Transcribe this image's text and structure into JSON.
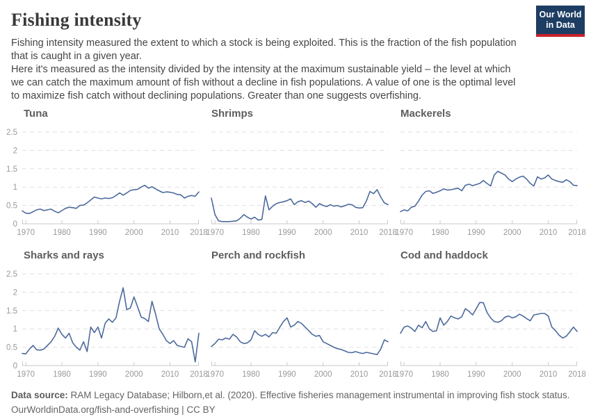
{
  "header": {
    "title": "Fishing intensity",
    "description_1": "Fishing intensity measured the extent to which a stock is being exploited. This is the fraction of the fish population that is caught in a given year.",
    "description_2": "Here it's measured as the intensity divided by the intensity at the maximum sustainable yield – the level at which we can catch the maximum amount of fish without a decline in fish populations. A value of one is the optimal level to maximize fish catch without declining populations. Greater than one suggests overfishing."
  },
  "logo": {
    "line1": "Our World",
    "line2": "in Data",
    "bg_color": "#1d3d63",
    "accent_color": "#c8222b"
  },
  "colors": {
    "line": "#4c6a9c",
    "grid": "#e0e0e0",
    "axis": "#c9c9c9",
    "tick_text": "#999999",
    "chart_title": "#5d5d5d"
  },
  "chart_data": {
    "type": "line",
    "layout": "small-multiples 2 rows x 3 columns",
    "x": {
      "start_year": 1969,
      "end_year": 2018,
      "step": 1
    },
    "x_tick_labels": [
      1970,
      1980,
      1990,
      2000,
      2010,
      2018
    ],
    "y_ticks": [
      0,
      0.5,
      1,
      1.5,
      2,
      2.5
    ],
    "ylim": [
      0,
      2.5
    ],
    "grid": "dashed horizontal gridlines, y labels shown on left column only",
    "series": [
      {
        "name": "Tuna",
        "y_axis_labels_shown": true,
        "values": [
          0.35,
          0.29,
          0.28,
          0.33,
          0.38,
          0.4,
          0.36,
          0.38,
          0.4,
          0.34,
          0.3,
          0.36,
          0.42,
          0.45,
          0.44,
          0.42,
          0.5,
          0.51,
          0.57,
          0.65,
          0.73,
          0.7,
          0.68,
          0.7,
          0.69,
          0.71,
          0.77,
          0.84,
          0.78,
          0.84,
          0.91,
          0.93,
          0.94,
          1.0,
          1.05,
          0.97,
          1.01,
          0.95,
          0.9,
          0.85,
          0.87,
          0.86,
          0.84,
          0.8,
          0.79,
          0.7,
          0.75,
          0.77,
          0.75,
          0.87
        ]
      },
      {
        "name": "Shrimps",
        "y_axis_labels_shown": false,
        "values": [
          0.7,
          0.25,
          0.08,
          0.06,
          0.06,
          0.06,
          0.07,
          0.08,
          0.15,
          0.25,
          0.18,
          0.13,
          0.18,
          0.1,
          0.12,
          0.76,
          0.38,
          0.48,
          0.55,
          0.58,
          0.6,
          0.63,
          0.68,
          0.52,
          0.6,
          0.63,
          0.58,
          0.62,
          0.55,
          0.45,
          0.55,
          0.5,
          0.47,
          0.52,
          0.48,
          0.5,
          0.46,
          0.49,
          0.53,
          0.52,
          0.45,
          0.43,
          0.44,
          0.62,
          0.88,
          0.82,
          0.93,
          0.73,
          0.57,
          0.52
        ]
      },
      {
        "name": "Mackerels",
        "y_axis_labels_shown": false,
        "values": [
          0.33,
          0.38,
          0.35,
          0.45,
          0.48,
          0.62,
          0.78,
          0.88,
          0.9,
          0.83,
          0.86,
          0.9,
          0.95,
          0.92,
          0.93,
          0.95,
          0.97,
          0.9,
          1.05,
          1.08,
          1.04,
          1.07,
          1.1,
          1.18,
          1.1,
          1.03,
          1.33,
          1.43,
          1.38,
          1.33,
          1.22,
          1.15,
          1.22,
          1.27,
          1.3,
          1.22,
          1.1,
          1.03,
          1.28,
          1.22,
          1.25,
          1.33,
          1.22,
          1.18,
          1.15,
          1.13,
          1.2,
          1.15,
          1.05,
          1.04
        ]
      },
      {
        "name": "Sharks and rays",
        "y_axis_labels_shown": true,
        "values": [
          0.33,
          0.32,
          0.45,
          0.55,
          0.43,
          0.42,
          0.45,
          0.55,
          0.65,
          0.8,
          1.02,
          0.85,
          0.75,
          0.88,
          0.62,
          0.5,
          0.42,
          0.65,
          0.38,
          1.05,
          0.9,
          1.05,
          0.75,
          1.15,
          1.27,
          1.18,
          1.3,
          1.75,
          2.12,
          1.52,
          1.57,
          1.87,
          1.6,
          1.32,
          1.28,
          1.2,
          1.75,
          1.4,
          1.0,
          0.85,
          0.68,
          0.6,
          0.68,
          0.55,
          0.52,
          0.5,
          0.73,
          0.65,
          0.1,
          0.88
        ]
      },
      {
        "name": "Perch and rockfish",
        "y_axis_labels_shown": false,
        "values": [
          0.52,
          0.6,
          0.72,
          0.7,
          0.75,
          0.72,
          0.85,
          0.78,
          0.65,
          0.6,
          0.62,
          0.7,
          0.95,
          0.85,
          0.8,
          0.85,
          0.78,
          0.9,
          0.88,
          1.05,
          1.2,
          1.3,
          1.05,
          1.1,
          1.2,
          1.15,
          1.05,
          0.95,
          0.85,
          0.8,
          0.82,
          0.65,
          0.6,
          0.55,
          0.5,
          0.46,
          0.44,
          0.4,
          0.36,
          0.35,
          0.38,
          0.35,
          0.33,
          0.36,
          0.34,
          0.32,
          0.3,
          0.45,
          0.7,
          0.65
        ]
      },
      {
        "name": "Cod and haddock",
        "y_axis_labels_shown": false,
        "values": [
          0.88,
          1.05,
          1.08,
          1.02,
          0.93,
          1.1,
          1.03,
          1.2,
          1.0,
          0.93,
          0.95,
          1.3,
          1.1,
          1.2,
          1.35,
          1.3,
          1.27,
          1.33,
          1.55,
          1.48,
          1.38,
          1.55,
          1.72,
          1.71,
          1.45,
          1.3,
          1.2,
          1.18,
          1.22,
          1.32,
          1.35,
          1.3,
          1.33,
          1.4,
          1.35,
          1.28,
          1.22,
          1.38,
          1.4,
          1.42,
          1.42,
          1.35,
          1.05,
          0.95,
          0.83,
          0.75,
          0.8,
          0.92,
          1.05,
          0.93
        ]
      }
    ]
  },
  "footer": {
    "source_label": "Data source:",
    "source_text": " RAM Legacy Database; Hilborn,et al. (2020). Effective fisheries management instrumental in improving fish stock status.",
    "url": "OurWorldinData.org/fish-and-overfishing",
    "separator": " | ",
    "license": "CC BY"
  }
}
